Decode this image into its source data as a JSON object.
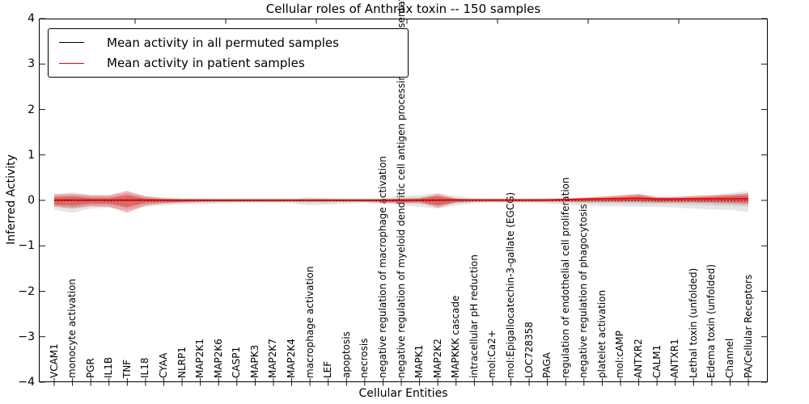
{
  "title": "Cellular roles of Anthrax toxin -- 150 samples",
  "axes": {
    "ylabel": "Inferred Activity",
    "xlabel": "Cellular Entities",
    "ytick_labels": [
      "4",
      "3",
      "2",
      "1",
      "0",
      "−1",
      "−2",
      "−3",
      "−4"
    ]
  },
  "legend": {
    "items": [
      {
        "label": "Mean activity in all permuted samples",
        "color": "#000000"
      },
      {
        "label": "Mean activity in patient samples",
        "color": "#ff0000"
      }
    ]
  },
  "chart_data": {
    "type": "area",
    "title": "Cellular roles of Anthrax toxin -- 150 samples",
    "xlabel": "Cellular Entities",
    "ylabel": "Inferred Activity",
    "ylim": [
      -4,
      4
    ],
    "yticks": [
      4,
      3,
      2,
      1,
      0,
      -1,
      -2,
      -3,
      -4
    ],
    "grid": false,
    "legend_position": "upper left",
    "entities": [
      "VCAM1",
      "monocyte activation",
      "PGR",
      "IL1B",
      "TNF",
      "IL18",
      "CYAA",
      "NLRP1",
      "MAP2K1",
      "MAP2K6",
      "CASP1",
      "MAPK3",
      "MAP2K7",
      "MAP2K4",
      "macrophage activation",
      "LEF",
      "apoptosis",
      "necrosis",
      "negative regulation of macrophage activation",
      "negative regulation of myeloid dendritic cell antigen processing and presentation",
      "MAPK1",
      "MAP2K2",
      "MAPKKK cascade",
      "intracellular pH reduction",
      "mol:Ca2+",
      "mol:Epigallocatechin-3-gallate (EGCG)",
      "LOC728358",
      "PAGA",
      "regulation of endothelial cell proliferation",
      "negative regulation of phagocytosis",
      "platelet activation",
      "mol:cAMP",
      "ANTXR2",
      "CALM1",
      "ANTXR1",
      "Lethal toxin (unfolded)",
      "Edema toxin (unfolded)",
      "Channel",
      "PA/Cellular Receptors"
    ],
    "series": [
      {
        "name": "permuted_band_outer",
        "kind": "band",
        "color": "#8c8c8c",
        "opacity": 0.22,
        "upper": [
          0.14,
          0.18,
          0.12,
          0.11,
          0.16,
          0.09,
          0.07,
          0.05,
          0.05,
          0.04,
          0.04,
          0.04,
          0.04,
          0.04,
          0.07,
          0.05,
          0.04,
          0.04,
          0.05,
          0.09,
          0.12,
          0.16,
          0.09,
          0.05,
          0.04,
          0.04,
          0.04,
          0.05,
          0.05,
          0.07,
          0.09,
          0.11,
          0.14,
          0.09,
          0.09,
          0.11,
          0.12,
          0.16,
          0.21
        ],
        "lower": [
          -0.2,
          -0.27,
          -0.18,
          -0.16,
          -0.21,
          -0.14,
          -0.11,
          -0.09,
          -0.08,
          -0.07,
          -0.06,
          -0.06,
          -0.06,
          -0.06,
          -0.11,
          -0.09,
          -0.07,
          -0.06,
          -0.07,
          -0.11,
          -0.14,
          -0.18,
          -0.11,
          -0.07,
          -0.05,
          -0.06,
          -0.06,
          -0.07,
          -0.09,
          -0.11,
          -0.13,
          -0.13,
          -0.14,
          -0.14,
          -0.16,
          -0.18,
          -0.2,
          -0.21,
          -0.25
        ]
      },
      {
        "name": "permuted_band_inner",
        "kind": "band",
        "color": "#8c8c8c",
        "opacity": 0.22,
        "upper": [
          0.08,
          0.1,
          0.07,
          0.06,
          0.09,
          0.05,
          0.04,
          0.03,
          0.03,
          0.02,
          0.02,
          0.02,
          0.02,
          0.02,
          0.04,
          0.03,
          0.02,
          0.02,
          0.03,
          0.05,
          0.07,
          0.09,
          0.05,
          0.03,
          0.02,
          0.02,
          0.02,
          0.03,
          0.03,
          0.04,
          0.05,
          0.06,
          0.08,
          0.05,
          0.05,
          0.06,
          0.07,
          0.09,
          0.12
        ],
        "lower": [
          -0.11,
          -0.15,
          -0.1,
          -0.09,
          -0.12,
          -0.08,
          -0.06,
          -0.05,
          -0.04,
          -0.04,
          -0.03,
          -0.03,
          -0.03,
          -0.03,
          -0.06,
          -0.05,
          -0.04,
          -0.03,
          -0.04,
          -0.06,
          -0.08,
          -0.1,
          -0.06,
          -0.04,
          -0.03,
          -0.03,
          -0.03,
          -0.04,
          -0.05,
          -0.06,
          -0.07,
          -0.07,
          -0.08,
          -0.08,
          -0.09,
          -0.1,
          -0.11,
          -0.12,
          -0.14
        ]
      },
      {
        "name": "patient_band_outer",
        "kind": "band",
        "color": "#dd0000",
        "opacity": 0.28,
        "upper": [
          0.13,
          0.14,
          0.11,
          0.11,
          0.21,
          0.09,
          0.04,
          0.02,
          0.01,
          0.01,
          0.01,
          0.01,
          0.01,
          0.01,
          0.01,
          0.01,
          0.01,
          0.01,
          0.02,
          0.04,
          0.05,
          0.14,
          0.04,
          0.02,
          0.01,
          0.01,
          0.01,
          0.01,
          0.02,
          0.05,
          0.08,
          0.11,
          0.14,
          0.07,
          0.07,
          0.09,
          0.11,
          0.13,
          0.16
        ],
        "lower": [
          -0.14,
          -0.18,
          -0.13,
          -0.14,
          -0.27,
          -0.11,
          -0.07,
          -0.05,
          -0.04,
          -0.03,
          -0.03,
          -0.03,
          -0.03,
          -0.03,
          -0.03,
          -0.03,
          -0.03,
          -0.03,
          -0.05,
          -0.06,
          -0.05,
          -0.16,
          -0.05,
          -0.03,
          -0.03,
          -0.03,
          -0.03,
          -0.03,
          -0.03,
          -0.04,
          -0.04,
          -0.04,
          -0.04,
          -0.05,
          -0.05,
          -0.05,
          -0.06,
          -0.07,
          -0.09
        ]
      },
      {
        "name": "patient_band_inner",
        "kind": "band",
        "color": "#dd0000",
        "opacity": 0.3,
        "upper": [
          0.07,
          0.09,
          0.05,
          0.05,
          0.13,
          0.04,
          0.02,
          0.01,
          0.005,
          0.005,
          0.005,
          0.005,
          0.005,
          0.005,
          0.005,
          0.005,
          0.005,
          0.005,
          0.01,
          0.02,
          0.03,
          0.09,
          0.02,
          0.01,
          0.005,
          0.005,
          0.005,
          0.005,
          0.01,
          0.03,
          0.05,
          0.07,
          0.1,
          0.05,
          0.05,
          0.06,
          0.08,
          0.1,
          0.12
        ],
        "lower": [
          -0.09,
          -0.11,
          -0.07,
          -0.07,
          -0.16,
          -0.05,
          -0.04,
          -0.03,
          -0.02,
          -0.02,
          -0.02,
          -0.02,
          -0.02,
          -0.02,
          -0.02,
          -0.02,
          -0.02,
          -0.02,
          -0.03,
          -0.04,
          -0.03,
          -0.11,
          -0.03,
          -0.02,
          -0.02,
          -0.02,
          -0.02,
          -0.02,
          -0.02,
          -0.02,
          -0.02,
          -0.02,
          -0.02,
          -0.03,
          -0.03,
          -0.03,
          -0.04,
          -0.04,
          -0.05
        ]
      },
      {
        "name": "patient_mean_line",
        "kind": "line",
        "color": "#ff0000",
        "width": 1.8,
        "dash": null,
        "values": [
          0.005,
          0.005,
          0.005,
          0.005,
          0.005,
          0.005,
          0.005,
          0.005,
          0.005,
          0.005,
          0.005,
          0.005,
          0.005,
          0.005,
          0.005,
          0.005,
          0.005,
          0.005,
          0.005,
          0.005,
          0.005,
          0.005,
          0.01,
          0.01,
          0.01,
          0.01,
          0.01,
          0.01,
          0.02,
          0.03,
          0.035,
          0.04,
          0.045,
          0.03,
          0.03,
          0.035,
          0.035,
          0.035,
          0.04
        ]
      },
      {
        "name": "permuted_mean_line",
        "kind": "line",
        "color": "#000000",
        "width": 1.1,
        "dash": "1.5,2.6",
        "values": [
          0,
          0,
          0,
          0,
          0,
          0,
          0,
          0,
          0,
          0,
          0,
          0,
          0,
          0,
          0,
          0,
          0,
          0,
          0,
          0,
          0,
          0,
          0,
          0,
          0,
          0,
          0,
          0,
          0,
          0,
          0,
          0,
          0,
          0,
          0,
          0,
          0,
          0,
          0
        ]
      }
    ]
  }
}
